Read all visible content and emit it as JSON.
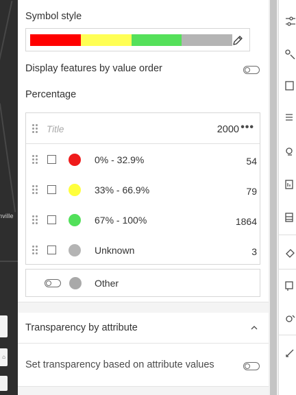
{
  "map": {
    "label": "nville"
  },
  "symbol_style": {
    "label": "Symbol style",
    "ramp_colors": [
      "#ff0000",
      "#ffff55",
      "#55e05a",
      "#b4b4b4"
    ],
    "edit_icon": "pencil-icon"
  },
  "value_order": {
    "label": "Display features by value order",
    "enabled": false
  },
  "field": {
    "label": "Percentage"
  },
  "classes": {
    "title_placeholder": "Title",
    "total_count": "2000",
    "more_icon": "•••",
    "items": [
      {
        "label": "0% - 32.9%",
        "count": "54",
        "color": "#ef1b1b",
        "checked": false
      },
      {
        "label": "33% - 66.9%",
        "count": "79",
        "color": "#ffff3c",
        "checked": false
      },
      {
        "label": "67% - 100%",
        "count": "1864",
        "color": "#52e05a",
        "checked": false
      },
      {
        "label": "Unknown",
        "count": "3",
        "color": "#b4b4b4",
        "checked": false
      }
    ]
  },
  "other": {
    "label": "Other",
    "color": "#a9a9a9",
    "enabled": false
  },
  "transparency": {
    "title": "Transparency by attribute",
    "description": "Set transparency based on attribute values",
    "expanded": true,
    "enabled": false
  }
}
